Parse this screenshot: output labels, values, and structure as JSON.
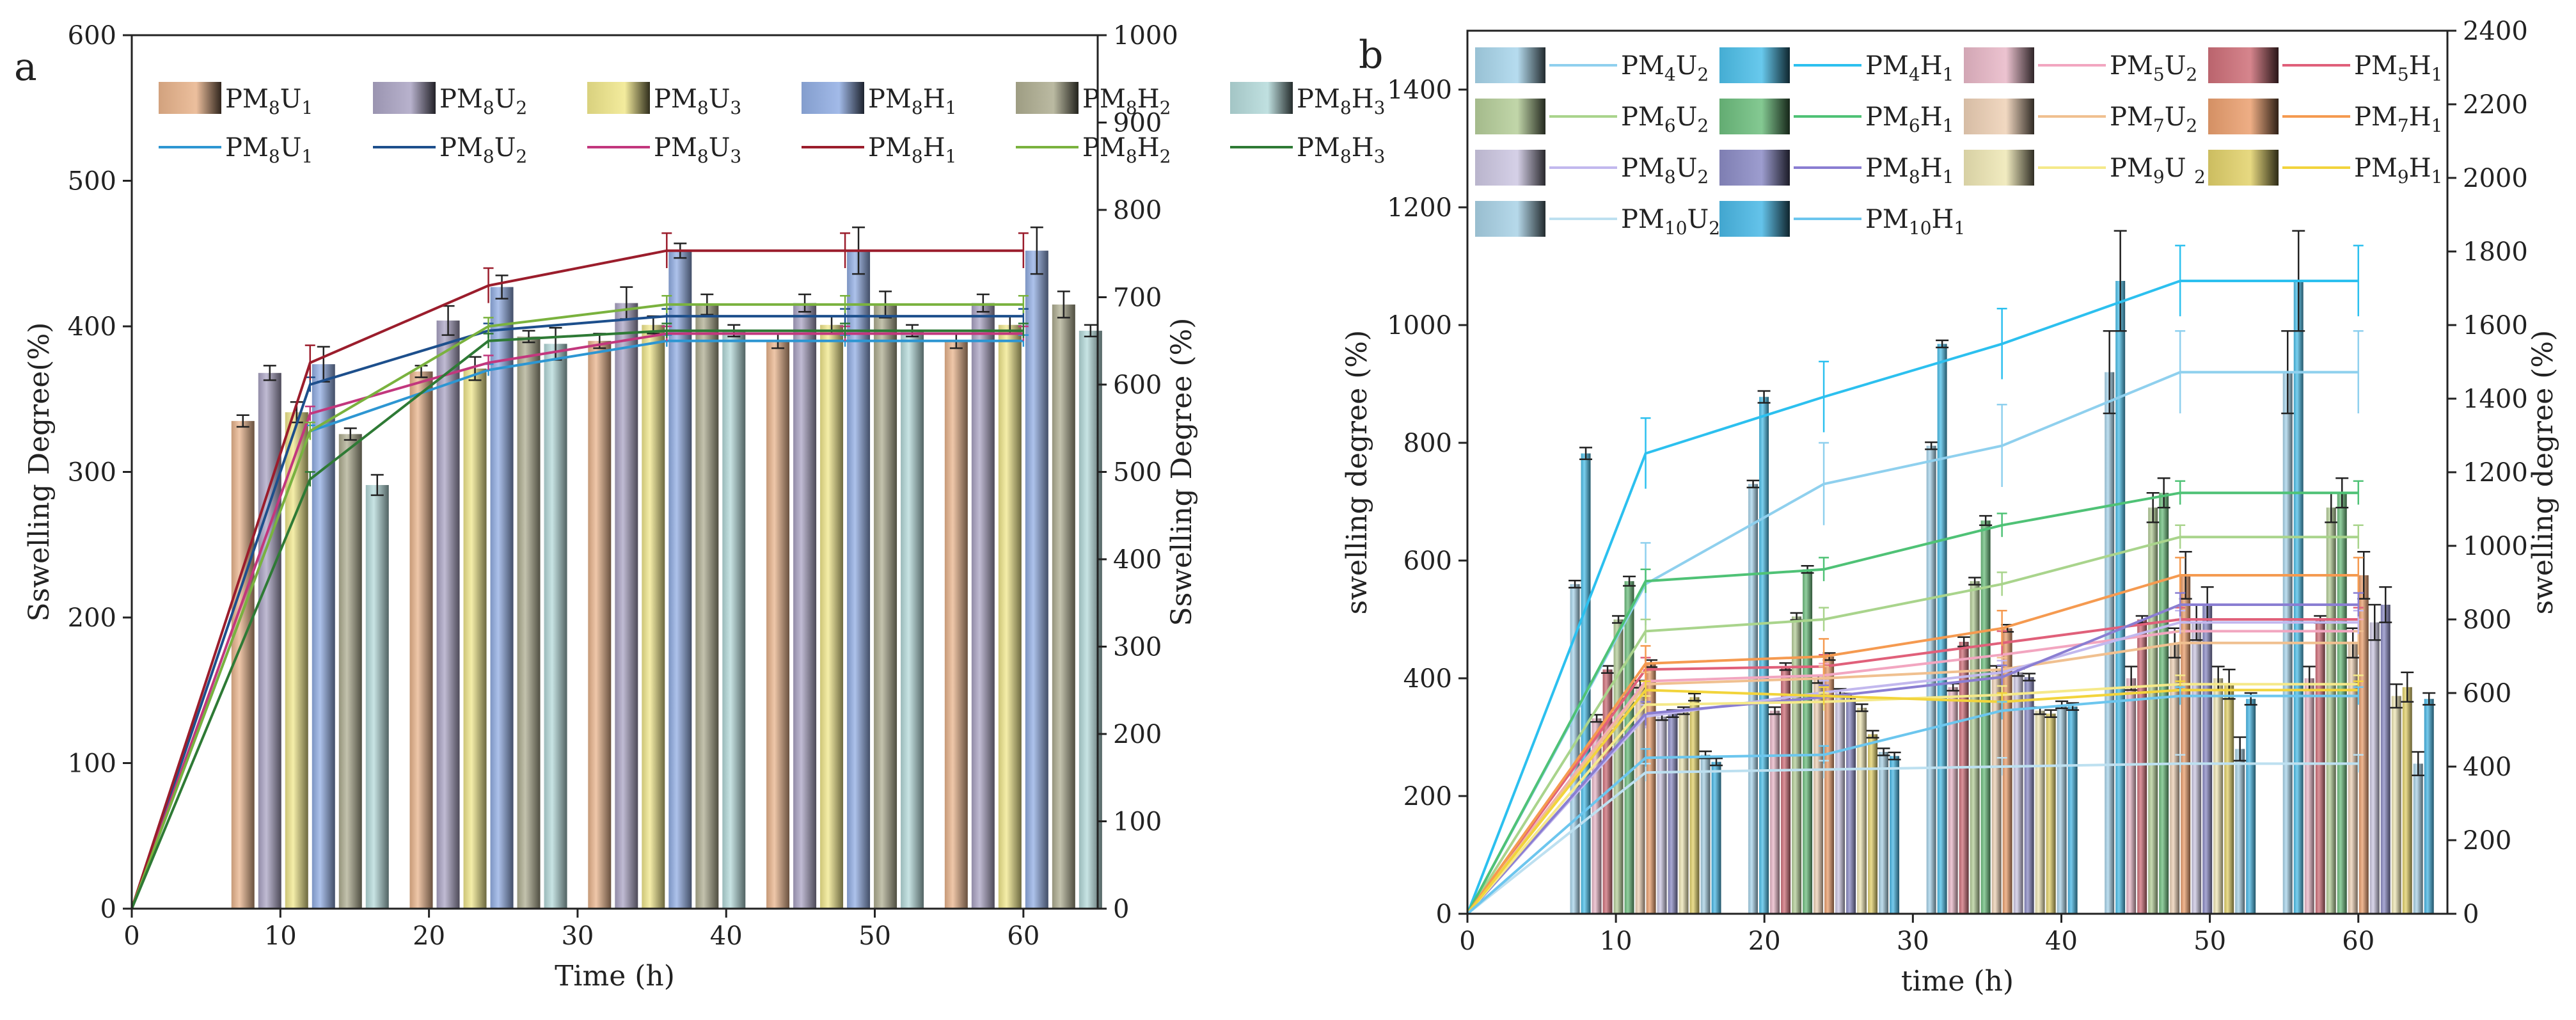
{
  "figure": {
    "panels": [
      "a",
      "b"
    ]
  },
  "chart_data": [
    {
      "panel": "a",
      "type": "bar+line",
      "xlabel": "Time (h)",
      "ylabel_left": "Sswelling Degree(%)",
      "ylabel_right": "Sswelling Degree (%)",
      "xlim": [
        0,
        65
      ],
      "ylim_left": [
        0,
        600
      ],
      "ylim_right": [
        0,
        1000
      ],
      "x_ticks": [
        "0",
        "10",
        "20",
        "30",
        "40",
        "50",
        "60"
      ],
      "y_left_ticks": [
        "0",
        "100",
        "200",
        "300",
        "400",
        "500",
        "600"
      ],
      "y_right_ticks": [
        "0",
        "100",
        "200",
        "300",
        "400",
        "500",
        "600",
        "700",
        "800",
        "900",
        "1000"
      ],
      "bar_groups_x": [
        12,
        24,
        36,
        48,
        60
      ],
      "bar_series": [
        {
          "label": "PM8U1",
          "base": "PM",
          "s1": "8",
          "m": "U",
          "s2": "1",
          "color": "#e9b48c",
          "values": [
            335,
            369,
            390,
            390,
            390
          ],
          "err": [
            4,
            4,
            5,
            5,
            5
          ]
        },
        {
          "label": "PM8U2",
          "base": "PM",
          "s1": "8",
          "m": "U",
          "s2": "2",
          "color": "#aba4c4",
          "values": [
            368,
            404,
            416,
            416,
            416
          ],
          "err": [
            5,
            10,
            11,
            6,
            6
          ]
        },
        {
          "label": "PM8U3",
          "base": "PM",
          "s1": "8",
          "m": "U",
          "s2": "3",
          "color": "#f1e88c",
          "values": [
            341,
            371,
            401,
            401,
            401
          ],
          "err": [
            7,
            8,
            6,
            6,
            6
          ]
        },
        {
          "label": "PM8H1",
          "base": "PM",
          "s1": "8",
          "m": "H",
          "s2": "1",
          "color": "#92aee4",
          "values": [
            374,
            427,
            452,
            452,
            452
          ],
          "err": [
            12,
            8,
            5,
            16,
            16
          ]
        },
        {
          "label": "PM8H2",
          "base": "PM",
          "s1": "8",
          "m": "H",
          "s2": "2",
          "color": "#afae91",
          "values": [
            326,
            393,
            415,
            415,
            415
          ],
          "err": [
            4,
            4,
            7,
            9,
            9
          ]
        },
        {
          "label": "PM8H3",
          "base": "PM",
          "s1": "8",
          "m": "H",
          "s2": "3",
          "color": "#b5dbdb",
          "values": [
            291,
            388,
            397,
            397,
            397
          ],
          "err": [
            7,
            11,
            4,
            4,
            4
          ]
        }
      ],
      "line_series": [
        {
          "label": "PM8U1",
          "base": "PM",
          "s1": "8",
          "m": "U",
          "s2": "1",
          "color": "#2d96d2",
          "x": [
            0,
            12,
            24,
            36,
            48,
            60
          ],
          "values": [
            0,
            328,
            370,
            390,
            390,
            390
          ],
          "err": 4
        },
        {
          "label": "PM8U2",
          "base": "PM",
          "s1": "8",
          "m": "U",
          "s2": "2",
          "color": "#1d4f8c",
          "x": [
            0,
            12,
            24,
            36,
            48,
            60
          ],
          "values": [
            0,
            360,
            397,
            407,
            407,
            407
          ],
          "err": 5
        },
        {
          "label": "PM8U3",
          "base": "PM",
          "s1": "8",
          "m": "U",
          "s2": "3",
          "color": "#c2377d",
          "x": [
            0,
            12,
            24,
            36,
            48,
            60
          ],
          "values": [
            0,
            340,
            375,
            395,
            395,
            395
          ],
          "err": 5
        },
        {
          "label": "PM8H1",
          "base": "PM",
          "s1": "8",
          "m": "H",
          "s2": "1",
          "color": "#9b1d2c",
          "x": [
            0,
            12,
            24,
            36,
            48,
            60
          ],
          "values": [
            0,
            375,
            428,
            452,
            452,
            452
          ],
          "err": 12
        },
        {
          "label": "PM8H2",
          "base": "PM",
          "s1": "8",
          "m": "H",
          "s2": "2",
          "color": "#7ab23e",
          "x": [
            0,
            12,
            24,
            36,
            48,
            60
          ],
          "values": [
            0,
            328,
            400,
            415,
            415,
            415
          ],
          "err": 6
        },
        {
          "label": "PM8H3",
          "base": "PM",
          "s1": "8",
          "m": "H",
          "s2": "3",
          "color": "#2e7a35",
          "x": [
            0,
            12,
            24,
            36,
            48,
            60
          ],
          "values": [
            0,
            295,
            390,
            397,
            397,
            397
          ],
          "err": 5
        }
      ]
    },
    {
      "panel": "b",
      "type": "bar+line",
      "xlabel": "time (h)",
      "ylabel_left": "swelling degree (%)",
      "ylabel_right": "swelling degree (%)",
      "xlim": [
        0,
        66
      ],
      "ylim_left": [
        0,
        1500
      ],
      "ylim_right": [
        0,
        2400
      ],
      "x_ticks": [
        "0",
        "10",
        "20",
        "30",
        "40",
        "50",
        "60"
      ],
      "y_left_ticks": [
        "0",
        "200",
        "400",
        "600",
        "800",
        "1000",
        "1200",
        "1400"
      ],
      "y_right_ticks": [
        "0",
        "200",
        "400",
        "600",
        "800",
        "1000",
        "1200",
        "1400",
        "1600",
        "1800",
        "2000",
        "2200",
        "2400"
      ],
      "bar_groups_x": [
        12,
        24,
        36,
        48,
        60
      ],
      "bar_series": [
        {
          "label": "PM4U2",
          "base": "PM",
          "s1": "4",
          "m": "U",
          "s2": "2",
          "color": "#a9d6ec",
          "values": [
            560,
            730,
            795,
            920,
            920
          ],
          "err": [
            6,
            6,
            6,
            70,
            70
          ]
        },
        {
          "label": "PM4H1",
          "base": "PM",
          "s1": "4",
          "m": "H",
          "s2": "1",
          "color": "#4dc0ea",
          "values": [
            782,
            878,
            968,
            1075,
            1075
          ],
          "err": [
            10,
            10,
            6,
            85,
            85
          ]
        },
        {
          "label": "PM5U2",
          "base": "PM",
          "s1": "5",
          "m": "U",
          "s2": "2",
          "color": "#e9b8c8",
          "values": [
            332,
            345,
            385,
            400,
            400
          ],
          "err": [
            6,
            6,
            6,
            20,
            20
          ]
        },
        {
          "label": "PM5H1",
          "base": "PM",
          "s1": "5",
          "m": "H",
          "s2": "1",
          "color": "#cf6f79",
          "values": [
            415,
            420,
            462,
            500,
            500
          ],
          "err": [
            6,
            6,
            8,
            6,
            6
          ]
        },
        {
          "label": "PM6U2",
          "base": "PM",
          "s1": "6",
          "m": "U",
          "s2": "2",
          "color": "#b6cf9a",
          "values": [
            500,
            505,
            565,
            690,
            690
          ],
          "err": [
            6,
            6,
            6,
            25,
            25
          ]
        },
        {
          "label": "PM6H1",
          "base": "PM",
          "s1": "6",
          "m": "H",
          "s2": "1",
          "color": "#6ebf7f",
          "values": [
            565,
            585,
            668,
            715,
            715
          ],
          "err": [
            8,
            6,
            8,
            25,
            25
          ]
        },
        {
          "label": "PM7U2",
          "base": "PM",
          "s1": "7",
          "m": "U",
          "s2": "2",
          "color": "#eed1b6",
          "values": [
            390,
            398,
            415,
            460,
            460
          ],
          "err": [
            6,
            6,
            6,
            25,
            25
          ]
        },
        {
          "label": "PM7H1",
          "base": "PM",
          "s1": "7",
          "m": "H",
          "s2": "1",
          "color": "#eba06f",
          "values": [
            425,
            437,
            485,
            575,
            575
          ],
          "err": [
            6,
            6,
            6,
            40,
            40
          ]
        },
        {
          "label": "PM8U2",
          "base": "PM",
          "s1": "8",
          "m": "U",
          "s2": "2",
          "color": "#cdc8e3",
          "values": [
            335,
            376,
            410,
            495,
            495
          ],
          "err": [
            6,
            6,
            6,
            30,
            30
          ]
        },
        {
          "label": "PM8H1",
          "base": "PM",
          "s1": "8",
          "m": "H",
          "s2": "1",
          "color": "#8c8cc6",
          "values": [
            340,
            368,
            402,
            525,
            525
          ],
          "err": [
            6,
            6,
            6,
            30,
            30
          ]
        },
        {
          "label": "PM9U 2",
          "base": "PM",
          "s1": "9",
          "m": "U ",
          "s2": "2",
          "color": "#efe7b5",
          "values": [
            345,
            350,
            345,
            400,
            370
          ],
          "err": [
            6,
            6,
            6,
            20,
            20
          ]
        },
        {
          "label": "PM9H1",
          "base": "PM",
          "s1": "9",
          "m": "H",
          "s2": "1",
          "color": "#e3d26b",
          "values": [
            368,
            305,
            340,
            390,
            385
          ],
          "err": [
            6,
            6,
            6,
            25,
            25
          ]
        },
        {
          "label": "PM10U2",
          "base": "PM",
          "s1": "10",
          "m": "U",
          "s2": "2",
          "color": "#a9d2e6",
          "values": [
            270,
            275,
            355,
            280,
            255
          ],
          "err": [
            6,
            6,
            6,
            20,
            20
          ]
        },
        {
          "label": "PM10H1",
          "base": "PM",
          "s1": "10",
          "m": "H",
          "s2": "1",
          "color": "#49b8e6",
          "values": [
            258,
            268,
            352,
            365,
            365
          ],
          "err": [
            6,
            6,
            6,
            10,
            10
          ]
        }
      ],
      "line_series": [
        {
          "label": "PM4U2",
          "color": "#8fd0ee",
          "x": [
            0,
            12,
            24,
            36,
            48,
            60
          ],
          "values": [
            0,
            560,
            730,
            795,
            920,
            920
          ],
          "err": 70
        },
        {
          "label": "PM4H1",
          "color": "#2cc0ef",
          "x": [
            0,
            12,
            24,
            36,
            48,
            60
          ],
          "values": [
            0,
            782,
            878,
            968,
            1075,
            1075
          ],
          "err": 60
        },
        {
          "label": "PM5U2",
          "color": "#f2a6c0",
          "x": [
            0,
            12,
            24,
            36,
            48,
            60
          ],
          "values": [
            0,
            395,
            405,
            440,
            480,
            480
          ],
          "err": 20
        },
        {
          "label": "PM5H1",
          "color": "#e0607a",
          "x": [
            0,
            12,
            24,
            36,
            48,
            60
          ],
          "values": [
            0,
            415,
            420,
            460,
            500,
            500
          ],
          "err": 20
        },
        {
          "label": "PM6U2",
          "color": "#a9d48c",
          "x": [
            0,
            12,
            24,
            36,
            48,
            60
          ],
          "values": [
            0,
            480,
            500,
            560,
            640,
            640
          ],
          "err": 20
        },
        {
          "label": "PM6H1",
          "color": "#4fc276",
          "x": [
            0,
            12,
            24,
            36,
            48,
            60
          ],
          "values": [
            0,
            565,
            585,
            660,
            715,
            715
          ],
          "err": 20
        },
        {
          "label": "PM7U2",
          "color": "#f0c090",
          "x": [
            0,
            12,
            24,
            36,
            48,
            60
          ],
          "values": [
            0,
            390,
            400,
            415,
            460,
            460
          ],
          "err": 20
        },
        {
          "label": "PM7H1",
          "color": "#f59a50",
          "x": [
            0,
            12,
            24,
            36,
            48,
            60
          ],
          "values": [
            0,
            425,
            437,
            485,
            575,
            575
          ],
          "err": 30
        },
        {
          "label": "PM8U2",
          "color": "#c2b8ee",
          "x": [
            0,
            12,
            24,
            36,
            48,
            60
          ],
          "values": [
            0,
            335,
            376,
            410,
            495,
            495
          ],
          "err": 20
        },
        {
          "label": "PM8H1",
          "color": "#8a7ed2",
          "x": [
            0,
            12,
            24,
            36,
            48,
            60
          ],
          "values": [
            0,
            340,
            368,
            402,
            525,
            525
          ],
          "err": 20
        },
        {
          "label": "PM9U 2",
          "color": "#f5e98a",
          "x": [
            0,
            12,
            24,
            36,
            48,
            60
          ],
          "values": [
            0,
            355,
            360,
            372,
            390,
            390
          ],
          "err": 15
        },
        {
          "label": "PM9H1",
          "color": "#f2d43c",
          "x": [
            0,
            12,
            24,
            36,
            48,
            60
          ],
          "values": [
            0,
            380,
            370,
            360,
            380,
            380
          ],
          "err": 15
        },
        {
          "label": "PM10U2",
          "color": "#bde0f0",
          "x": [
            0,
            12,
            24,
            36,
            48,
            60
          ],
          "values": [
            0,
            240,
            245,
            250,
            255,
            255
          ],
          "err": 15
        },
        {
          "label": "PM10H1",
          "color": "#6cc6ee",
          "x": [
            0,
            12,
            24,
            36,
            48,
            60
          ],
          "values": [
            0,
            265,
            270,
            345,
            370,
            370
          ],
          "err": 15
        }
      ]
    }
  ]
}
